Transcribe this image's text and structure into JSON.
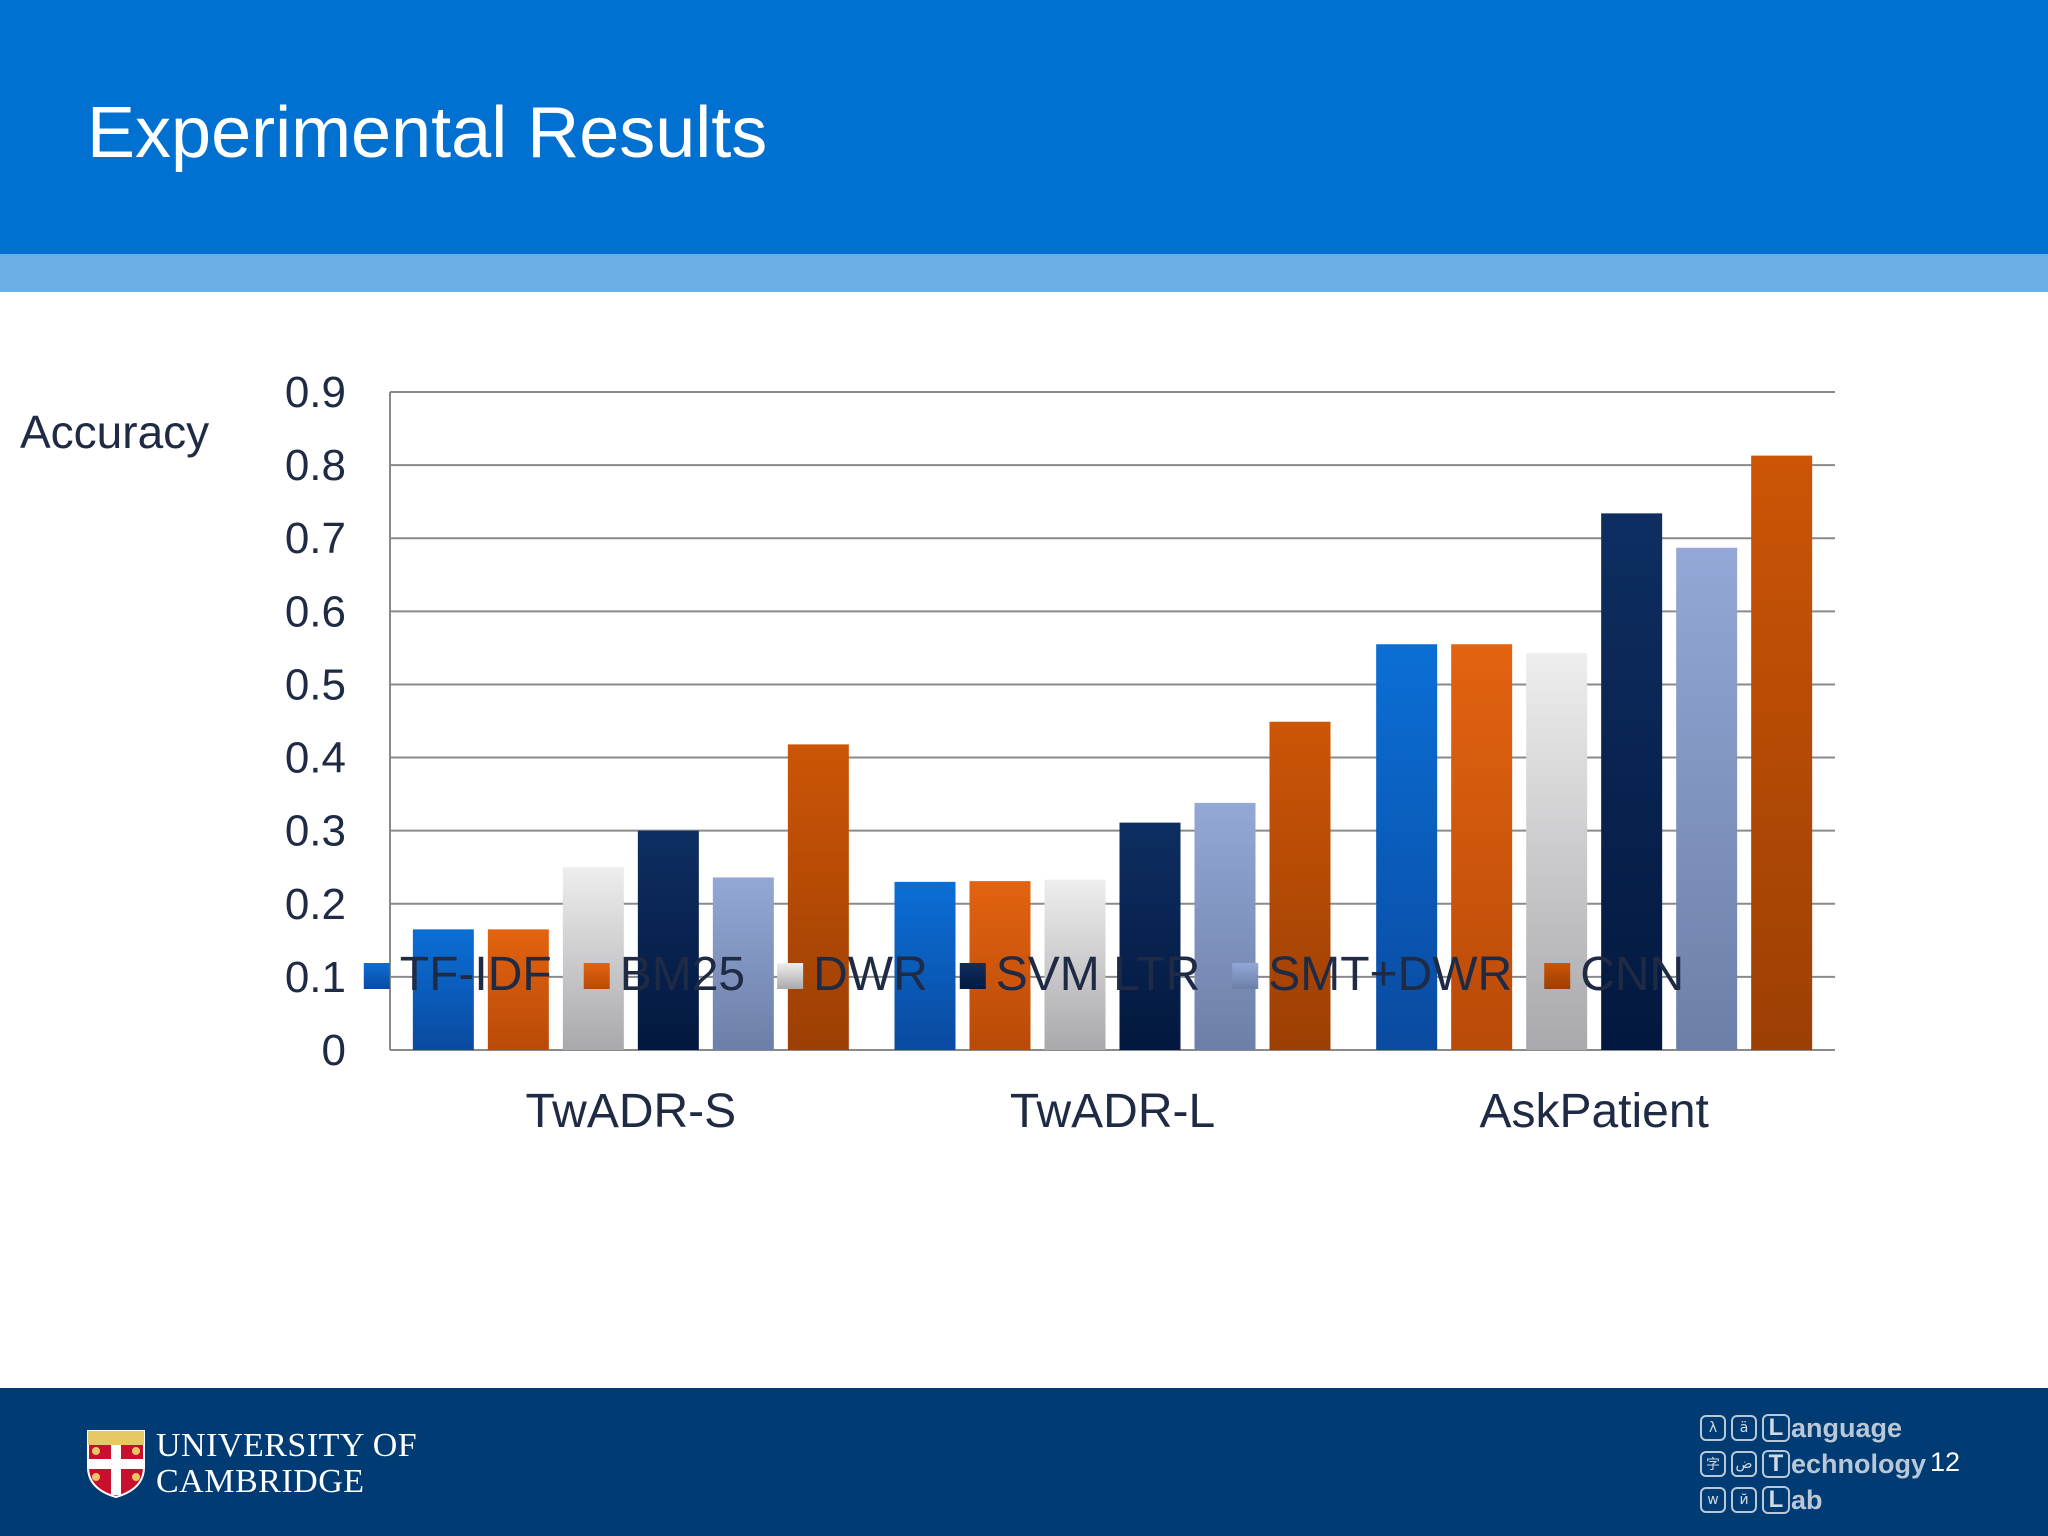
{
  "slide": {
    "title": "Experimental Results",
    "page_number": "12"
  },
  "footer": {
    "university_line1": "UNIVERSITY OF",
    "university_line2": "CAMBRIDGE",
    "lab_words": [
      "anguage",
      "echnology",
      "ab"
    ],
    "lab_initials": [
      "L",
      "T",
      "L"
    ],
    "lab_glyphs": [
      [
        "λ",
        "ä"
      ],
      [
        "字",
        "ض"
      ],
      [
        "w",
        "й"
      ]
    ]
  },
  "colors": {
    "header": "#0071d0",
    "header_stripe": "#6aaee4",
    "footer": "#003b73"
  },
  "chart_data": {
    "type": "bar",
    "ylabel": "Accuracy",
    "xlabel": "",
    "ylim": [
      0,
      0.9
    ],
    "yticks": [
      "0",
      "0.1",
      "0.2",
      "0.3",
      "0.4",
      "0.5",
      "0.6",
      "0.7",
      "0.8",
      "0.9"
    ],
    "grid": true,
    "legend_position": "bottom",
    "categories": [
      "TwADR-S",
      "TwADR-L",
      "AskPatient"
    ],
    "series": [
      {
        "name": "TF-IDF",
        "color_top": "#0b6fd6",
        "color_bottom": "#0a4aa0",
        "values": [
          0.165,
          0.23,
          0.555
        ]
      },
      {
        "name": "BM25",
        "color_top": "#e36310",
        "color_bottom": "#b94a08",
        "values": [
          0.165,
          0.231,
          0.555
        ]
      },
      {
        "name": "DWR",
        "color_top": "#eeeeee",
        "color_bottom": "#a9a9ad",
        "values": [
          0.25,
          0.233,
          0.543
        ]
      },
      {
        "name": "SVM LTR",
        "color_top": "#0e2e62",
        "color_bottom": "#03183e",
        "values": [
          0.3,
          0.311,
          0.734
        ]
      },
      {
        "name": "SMT+DWR",
        "color_top": "#93a8d6",
        "color_bottom": "#6c7fa8",
        "values": [
          0.236,
          0.338,
          0.687
        ]
      },
      {
        "name": "CNN",
        "color_top": "#cc5506",
        "color_bottom": "#9c3f04",
        "values": [
          0.418,
          0.449,
          0.813
        ]
      }
    ]
  }
}
